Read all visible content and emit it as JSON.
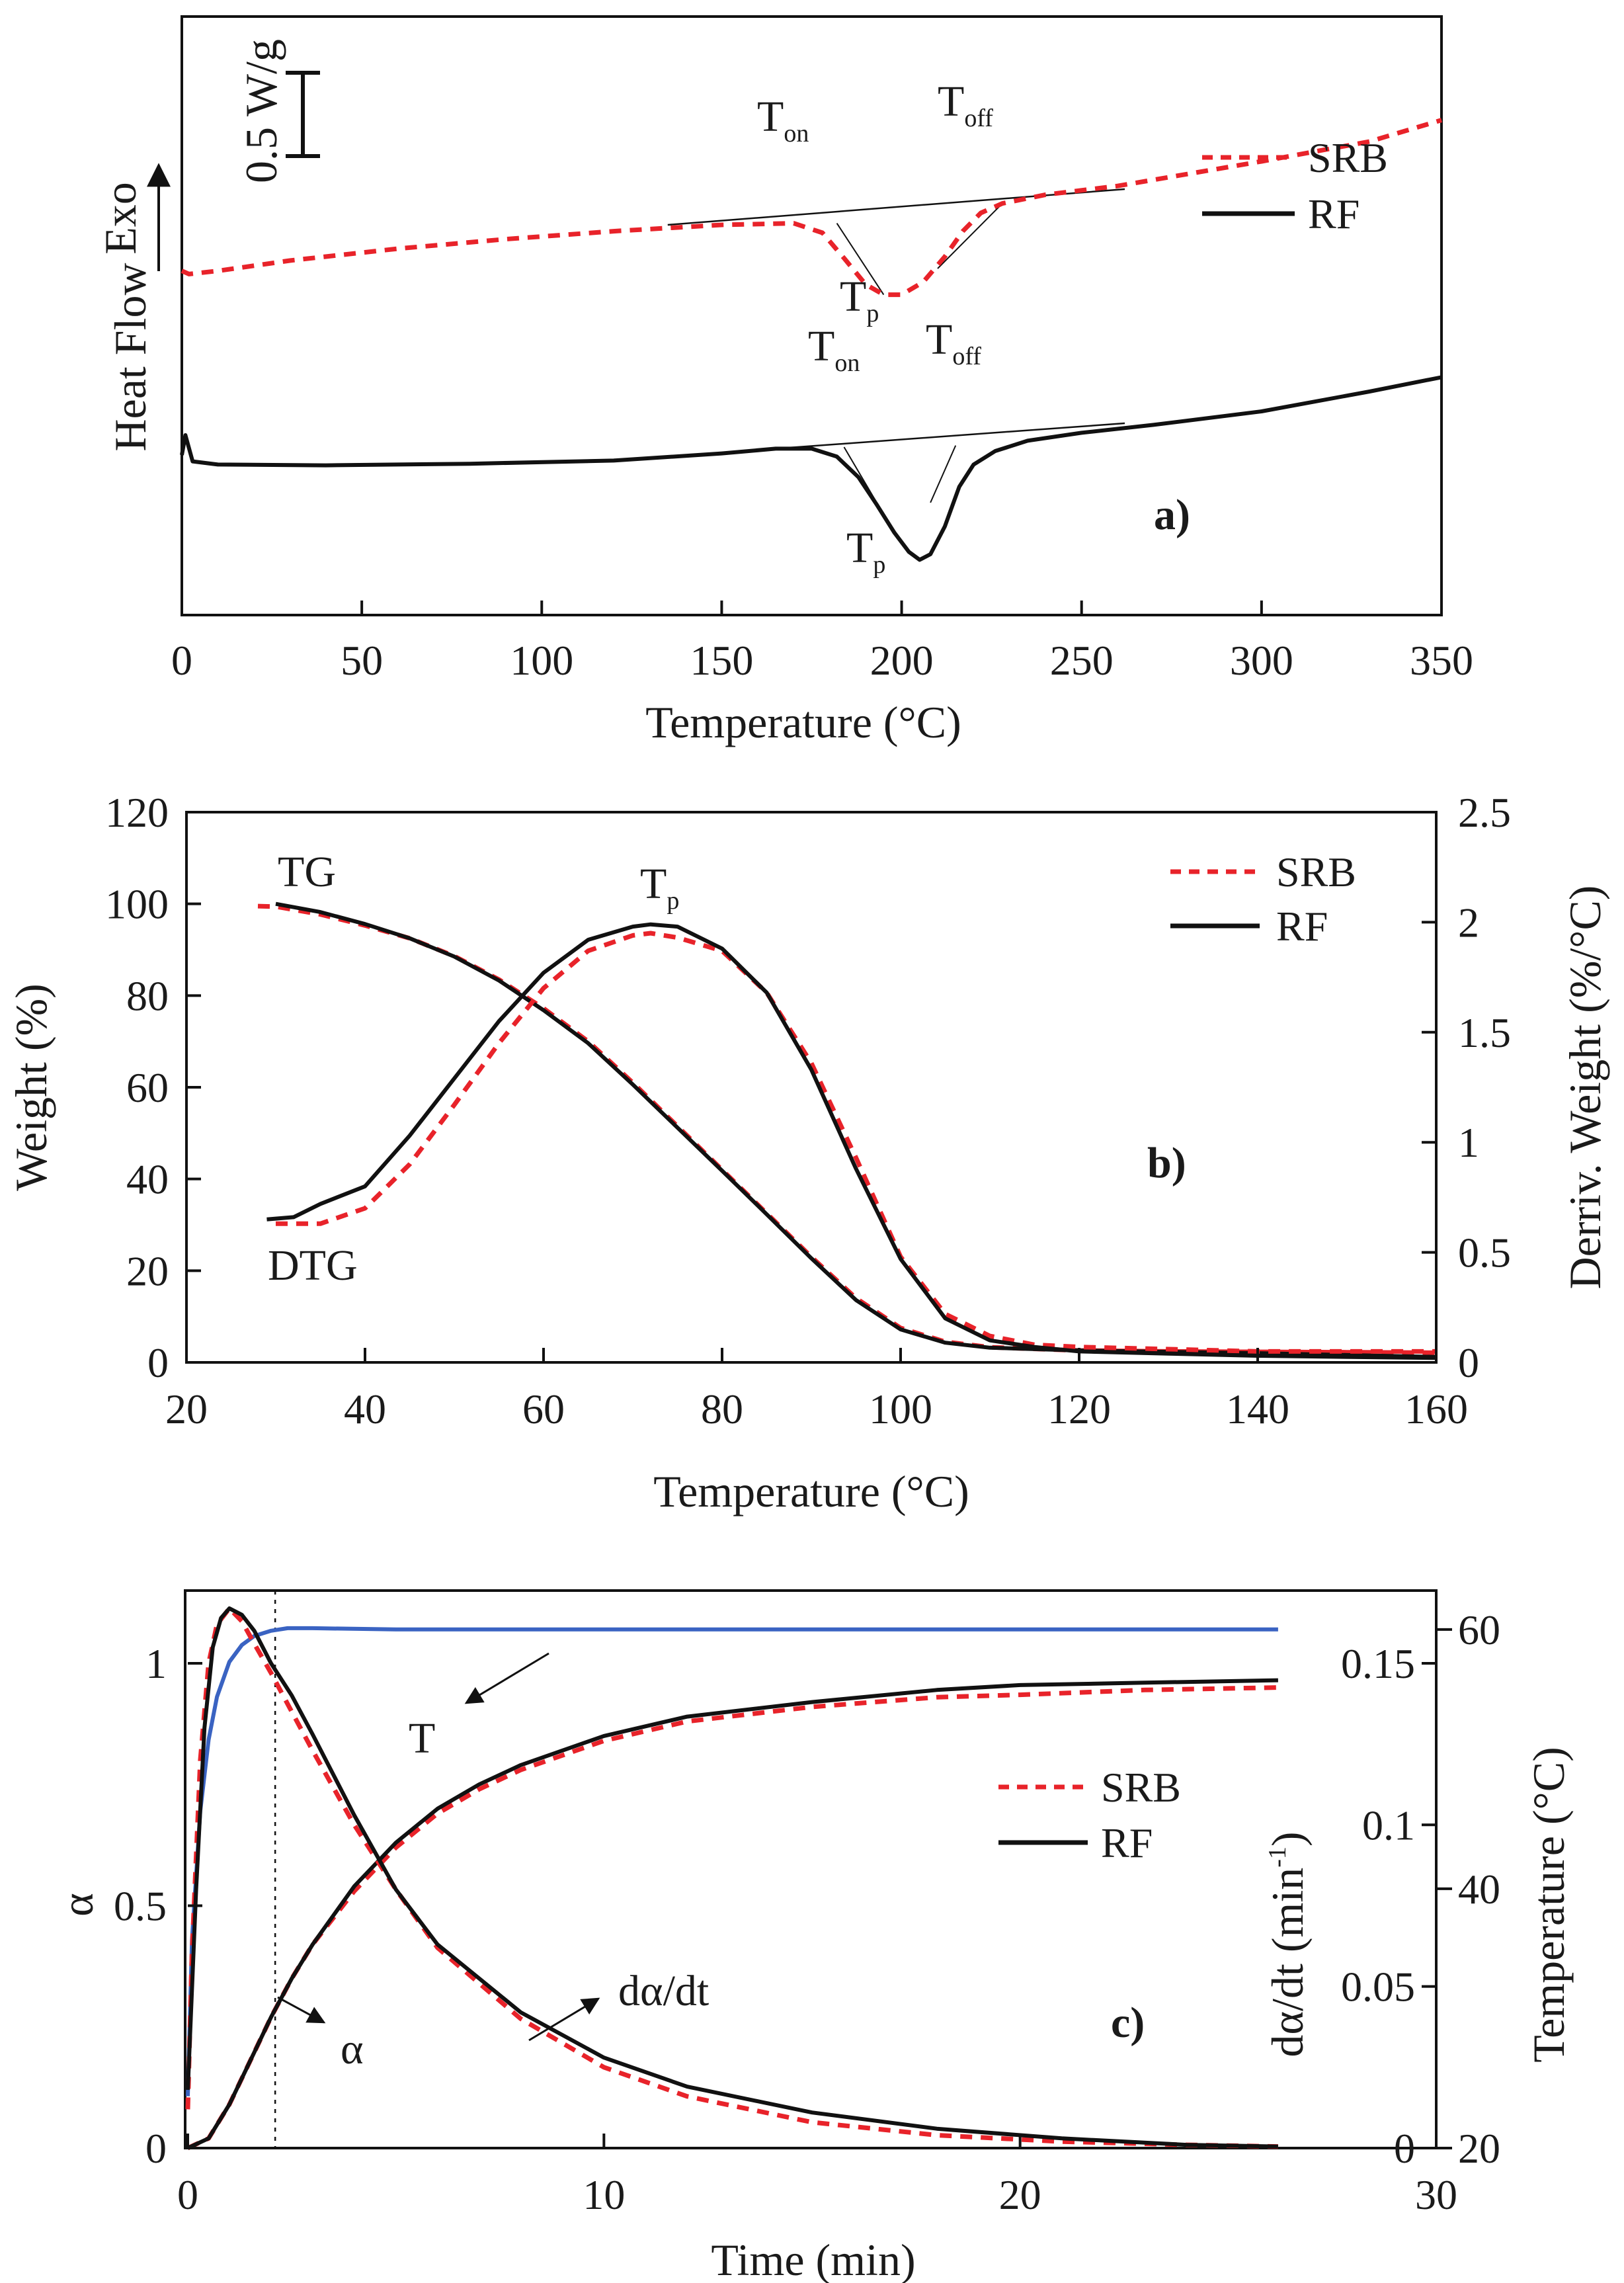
{
  "colors": {
    "srb": "#e8232a",
    "rf": "#111111",
    "temperature": "#3a63c2"
  },
  "panels": [
    {
      "id": "a",
      "panel_label": "a)",
      "xlabel": "Temperature (°C)",
      "ylabel": "Heat Flow",
      "exo_label": "Exo",
      "scale_bar": "0.5 W/g",
      "legend": [
        "SRB",
        "RF"
      ],
      "annotations": {
        "t_on": "T",
        "t_on_sub": "on",
        "t_off": "T",
        "t_off_sub": "off",
        "t_p": "T",
        "t_p_sub": "p"
      }
    },
    {
      "id": "b",
      "panel_label": "b)",
      "xlabel": "Temperature (°C)",
      "ylabel": "Weight (%)",
      "ylabel_right": "Derriv. Weight (%/°C)",
      "legend": [
        "SRB",
        "RF"
      ],
      "annotations": {
        "tg": "TG",
        "dtg": "DTG",
        "t_p": "T",
        "t_p_sub": "p"
      }
    },
    {
      "id": "c",
      "panel_label": "c)",
      "xlabel": "Time (min)",
      "ylabel": "α",
      "ylabel_right": "dα/dt (min",
      "ylabel_right_sup": "-1",
      "ylabel_right_close": ")",
      "ylabel_right2": "Temperature (°C)",
      "legend": [
        "SRB",
        "RF"
      ],
      "annotations": {
        "t": "T",
        "alpha": "α",
        "dadt": "dα/dt"
      }
    }
  ],
  "chart_data": [
    {
      "type": "line",
      "panel": "a",
      "xlabel": "Temperature (°C)",
      "ylabel": "Heat Flow",
      "xlim": [
        0,
        350
      ],
      "xticks": [
        0,
        50,
        100,
        150,
        200,
        250,
        300,
        350
      ],
      "y_units": "relative (Exo up, 0.5 W/g scale bar)",
      "series": [
        {
          "name": "SRB",
          "style": "dashed",
          "x": [
            0,
            2,
            10,
            30,
            60,
            90,
            120,
            150,
            170,
            178,
            184,
            190,
            195,
            200,
            206,
            212,
            217,
            222,
            228,
            240,
            260,
            300,
            330,
            350
          ],
          "y": [
            0.42,
            0.38,
            0.42,
            0.55,
            0.7,
            0.82,
            0.92,
            1.0,
            1.02,
            0.9,
            0.58,
            0.25,
            0.12,
            0.12,
            0.28,
            0.6,
            0.92,
            1.15,
            1.27,
            1.38,
            1.49,
            1.8,
            2.05,
            2.32
          ]
        },
        {
          "name": "RF",
          "style": "solid",
          "x": [
            0,
            1,
            3,
            10,
            40,
            80,
            120,
            150,
            165,
            175,
            182,
            188,
            193,
            198,
            202,
            205,
            208,
            212,
            216,
            220,
            226,
            235,
            250,
            270,
            300,
            330,
            350
          ],
          "y": [
            -1.9,
            -1.65,
            -1.98,
            -2.02,
            -2.03,
            -2.01,
            -1.97,
            -1.88,
            -1.82,
            -1.82,
            -1.92,
            -2.18,
            -2.52,
            -2.88,
            -3.12,
            -3.22,
            -3.15,
            -2.8,
            -2.3,
            -2.02,
            -1.85,
            -1.72,
            -1.62,
            -1.52,
            -1.35,
            -1.1,
            -0.92
          ]
        }
      ],
      "tangent_lines": [
        {
          "x": [
            135,
            262
          ],
          "y": [
            1.0,
            1.45
          ]
        },
        {
          "x": [
            165,
            262
          ],
          "y": [
            -1.82,
            -1.5
          ]
        }
      ]
    },
    {
      "type": "line",
      "panel": "b",
      "xlabel": "Temperature (°C)",
      "ylabel": "Weight (%)",
      "ylabel_right": "Derriv. Weight (%/°C)",
      "xlim": [
        20,
        160
      ],
      "ylim": [
        0,
        120
      ],
      "ylim_right": [
        0,
        2.5
      ],
      "xticks": [
        20,
        40,
        60,
        80,
        100,
        120,
        140,
        160
      ],
      "yticks": [
        0,
        20,
        40,
        60,
        80,
        100,
        120
      ],
      "yticks_right": [
        0,
        0.5,
        1,
        1.5,
        2,
        2.5
      ],
      "series": [
        {
          "name": "SRB",
          "curve": "TG",
          "axis": "left",
          "style": "dashed",
          "x": [
            28,
            30,
            35,
            40,
            45,
            50,
            55,
            60,
            65,
            70,
            75,
            80,
            85,
            90,
            95,
            100,
            105,
            110,
            120,
            130,
            140,
            150,
            160
          ],
          "y": [
            99.5,
            99.4,
            97.7,
            95.3,
            92.5,
            88.6,
            83.5,
            77.2,
            70.0,
            61.0,
            51.5,
            42.0,
            32.5,
            23.0,
            14.0,
            7.5,
            4.5,
            3.3,
            2.6,
            2.4,
            2.3,
            2.2,
            2.1
          ]
        },
        {
          "name": "RF",
          "curve": "TG",
          "axis": "left",
          "style": "solid",
          "x": [
            30,
            35,
            40,
            45,
            50,
            55,
            60,
            65,
            70,
            75,
            80,
            85,
            90,
            95,
            100,
            105,
            110,
            120,
            130,
            140,
            150,
            160
          ],
          "y": [
            100,
            98.2,
            95.6,
            92.5,
            88.5,
            83.3,
            76.8,
            69.6,
            60.6,
            51.2,
            41.8,
            32.3,
            22.7,
            13.6,
            7.2,
            4.3,
            3.2,
            2.6,
            2.3,
            2.0,
            1.6,
            1.2
          ]
        },
        {
          "name": "SRB",
          "curve": "DTG",
          "axis": "right",
          "style": "dashed",
          "x": [
            30,
            35,
            40,
            45,
            50,
            55,
            60,
            65,
            70,
            72,
            75,
            80,
            85,
            90,
            95,
            100,
            105,
            110,
            115,
            120,
            130,
            140,
            160
          ],
          "y": [
            0.63,
            0.63,
            0.7,
            0.9,
            1.17,
            1.45,
            1.7,
            1.87,
            1.94,
            1.95,
            1.93,
            1.87,
            1.68,
            1.36,
            0.93,
            0.48,
            0.22,
            0.12,
            0.08,
            0.07,
            0.06,
            0.05,
            0.05
          ]
        },
        {
          "name": "RF",
          "curve": "DTG",
          "axis": "right",
          "style": "solid",
          "x": [
            29,
            32,
            35,
            40,
            45,
            50,
            55,
            60,
            65,
            70,
            72,
            75,
            80,
            85,
            90,
            95,
            100,
            105,
            110,
            115,
            120,
            130,
            140,
            160
          ],
          "y": [
            0.65,
            0.66,
            0.72,
            0.8,
            1.03,
            1.29,
            1.55,
            1.77,
            1.92,
            1.98,
            1.99,
            1.98,
            1.88,
            1.68,
            1.33,
            0.88,
            0.47,
            0.2,
            0.1,
            0.07,
            0.05,
            0.04,
            0.03,
            0.02
          ]
        }
      ]
    },
    {
      "type": "line",
      "panel": "c",
      "xlabel": "Time (min)",
      "ylabel": "α",
      "ylabel_right": "dα/dt (min-1)",
      "ylabel_right2": "Temperature (°C)",
      "xlim": [
        0,
        30
      ],
      "ylim": [
        0,
        1.15
      ],
      "ylim_right": [
        0,
        0.1725
      ],
      "ylim_right2": [
        20,
        63
      ],
      "xticks": [
        0,
        10,
        20,
        30
      ],
      "yticks": [
        0,
        0.5,
        1
      ],
      "yticks_right": [
        0,
        0.05,
        0.1,
        0.15
      ],
      "yticks_right2": [
        20,
        40,
        60
      ],
      "vline_x": 2.1,
      "series": [
        {
          "name": "T",
          "axis": "right2",
          "style": "solid",
          "color": "temperature",
          "x": [
            0,
            0.1,
            0.3,
            0.5,
            0.7,
            1.0,
            1.3,
            1.6,
            2.0,
            2.4,
            3.0,
            5.0,
            10.0,
            20.0,
            26.2
          ],
          "y": [
            24.0,
            36.0,
            46.0,
            51.5,
            54.8,
            57.5,
            58.8,
            59.5,
            59.9,
            60.1,
            60.1,
            60.0,
            60.0,
            60.0,
            60.0
          ]
        },
        {
          "name": "SRB",
          "curve": "α",
          "axis": "left",
          "style": "dashed",
          "x": [
            0,
            0.5,
            1.0,
            1.5,
            2.0,
            2.5,
            3.0,
            4.0,
            5.0,
            6.0,
            7.0,
            8.0,
            10.0,
            12.0,
            15.0,
            18.0,
            20.0,
            23.0,
            26.2
          ],
          "y": [
            0,
            0.02,
            0.09,
            0.18,
            0.27,
            0.35,
            0.42,
            0.53,
            0.62,
            0.69,
            0.74,
            0.78,
            0.84,
            0.88,
            0.91,
            0.93,
            0.935,
            0.945,
            0.95
          ]
        },
        {
          "name": "RF",
          "curve": "α",
          "axis": "left",
          "style": "solid",
          "x": [
            0,
            0.5,
            1.0,
            1.5,
            2.0,
            2.5,
            3.0,
            4.0,
            5.0,
            6.0,
            7.0,
            8.0,
            10.0,
            12.0,
            15.0,
            18.0,
            20.0,
            23.0,
            26.2
          ],
          "y": [
            0,
            0.02,
            0.09,
            0.18,
            0.27,
            0.35,
            0.42,
            0.54,
            0.63,
            0.7,
            0.75,
            0.79,
            0.85,
            0.89,
            0.92,
            0.945,
            0.955,
            0.96,
            0.965
          ]
        },
        {
          "name": "SRB",
          "curve": "dα/dt",
          "axis": "right",
          "style": "dashed",
          "x": [
            0,
            0.1,
            0.3,
            0.5,
            0.7,
            1.0,
            1.3,
            1.6,
            2.0,
            2.5,
            3.0,
            4.0,
            5.0,
            6.0,
            8.0,
            10.0,
            12.0,
            15.0,
            18.0,
            21.0,
            24.0,
            26.2
          ],
          "y": [
            0.012,
            0.06,
            0.12,
            0.15,
            0.162,
            0.167,
            0.163,
            0.156,
            0.147,
            0.135,
            0.123,
            0.1,
            0.08,
            0.062,
            0.04,
            0.025,
            0.016,
            0.008,
            0.004,
            0.002,
            0.001,
            0.0005
          ]
        },
        {
          "name": "RF",
          "curve": "dα/dt",
          "axis": "right",
          "style": "solid",
          "x": [
            0,
            0.2,
            0.4,
            0.6,
            0.8,
            1.0,
            1.3,
            1.6,
            2.0,
            2.5,
            3.0,
            4.0,
            5.0,
            6.0,
            8.0,
            10.0,
            12.0,
            15.0,
            18.0,
            21.0,
            24.0,
            26.2
          ],
          "y": [
            0.018,
            0.08,
            0.13,
            0.155,
            0.164,
            0.167,
            0.165,
            0.16,
            0.15,
            0.14,
            0.128,
            0.103,
            0.08,
            0.063,
            0.042,
            0.028,
            0.019,
            0.011,
            0.006,
            0.003,
            0.001,
            0.0005
          ]
        }
      ]
    }
  ]
}
